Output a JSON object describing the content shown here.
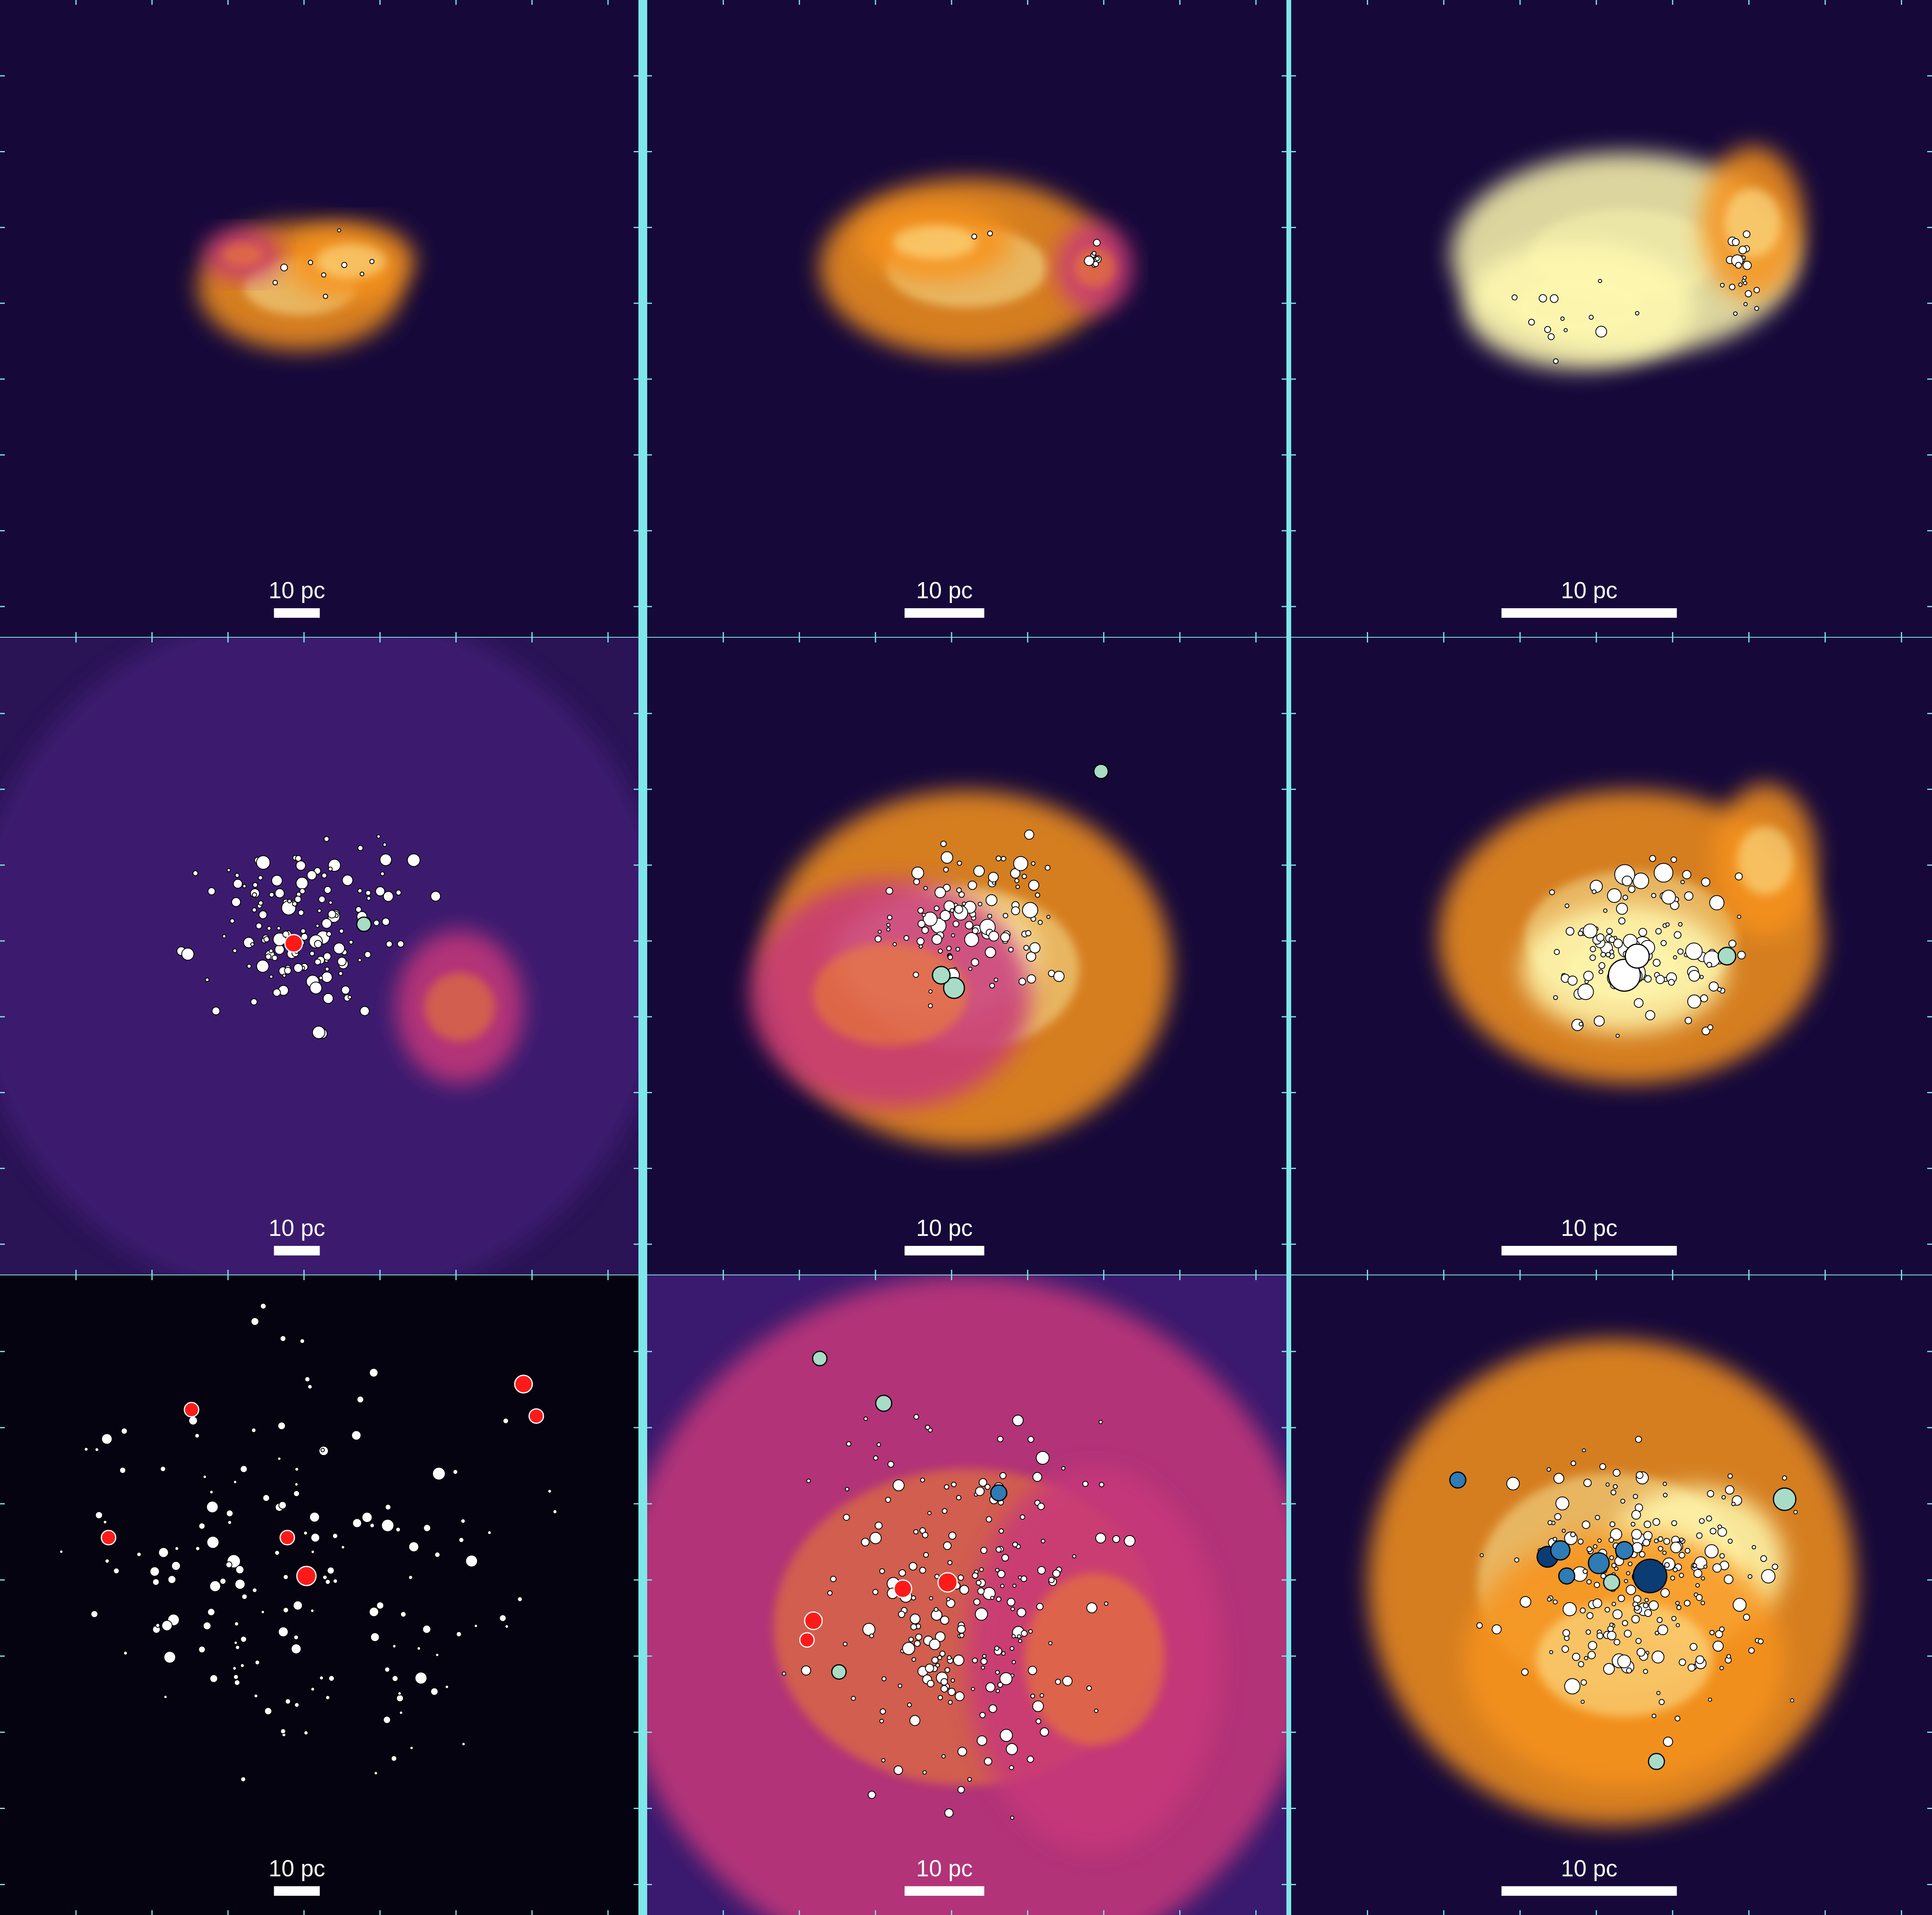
{
  "figure": {
    "grid": {
      "rows": 3,
      "cols": 3
    },
    "panels": [
      {
        "scale_label": "10 pc",
        "scale_bar": "short",
        "background": "#16093a"
      },
      {
        "scale_label": "10 pc",
        "scale_bar": "medium",
        "background": "#16093a"
      },
      {
        "scale_label": "10 pc",
        "scale_bar": "long",
        "background": "#16093a"
      },
      {
        "scale_label": "10 pc",
        "scale_bar": "short",
        "background": "#2a1456"
      },
      {
        "scale_label": "10 pc",
        "scale_bar": "medium",
        "background": "#16093a"
      },
      {
        "scale_label": "10 pc",
        "scale_bar": "long",
        "background": "#16093a"
      },
      {
        "scale_label": "10 pc",
        "scale_bar": "short",
        "background": "#05030f"
      },
      {
        "scale_label": "10 pc",
        "scale_bar": "medium",
        "background": "#3a1a6e"
      },
      {
        "scale_label": "10 pc",
        "scale_bar": "long",
        "background": "#16093a"
      }
    ],
    "colors": {
      "frame": "#7fe6ea",
      "gas_hot": "#fff9b0",
      "gas_mid": "#f7931e",
      "gas_cool": "#c8397a",
      "star_default": "#ffffff",
      "star_massive_red": "#ff1a1a",
      "star_teal_light": "#a8dcc6",
      "star_blue": "#2e7bb5",
      "star_navy": "#0c3c74"
    }
  }
}
